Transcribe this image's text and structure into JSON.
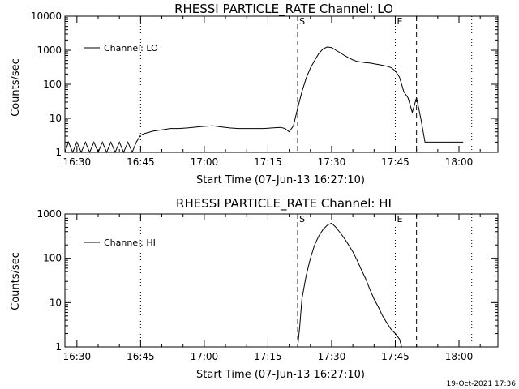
{
  "chart_data": [
    {
      "type": "line",
      "title": "RHESSI PARTICLE_RATE Channel: LO",
      "xlabel": "Start Time (07-Jun-13 16:27:10)",
      "ylabel": "Counts/sec",
      "y_scale": "log",
      "ylim": [
        1,
        10000
      ],
      "xlim": [
        "16:27:10",
        "18:09:10"
      ],
      "x_ticks": [
        "16:30",
        "16:45",
        "17:00",
        "17:15",
        "17:30",
        "17:45",
        "18:00"
      ],
      "y_ticks": [
        "1",
        "10",
        "100",
        "1000",
        "10000"
      ],
      "legend": {
        "position": "top-left",
        "entries": [
          "Channel: LO"
        ]
      },
      "series": [
        {
          "name": "Channel: LO",
          "x": [
            "16:27:10",
            "16:28",
            "16:29",
            "16:30",
            "16:31",
            "16:32",
            "16:33",
            "16:34",
            "16:35",
            "16:36",
            "16:37",
            "16:38",
            "16:39",
            "16:40",
            "16:41",
            "16:42",
            "16:43",
            "16:44",
            "16:45",
            "16:46",
            "16:48",
            "16:50",
            "16:52",
            "16:54",
            "16:56",
            "16:58",
            "17:00",
            "17:02",
            "17:04",
            "17:06",
            "17:08",
            "17:10",
            "17:12",
            "17:14",
            "17:16",
            "17:18",
            "17:19",
            "17:20",
            "17:21",
            "17:22",
            "17:23",
            "17:24",
            "17:25",
            "17:26",
            "17:27",
            "17:28",
            "17:29",
            "17:30",
            "17:31",
            "17:32",
            "17:33",
            "17:34",
            "17:35",
            "17:36",
            "17:37",
            "17:38",
            "17:39",
            "17:40",
            "17:41",
            "17:42",
            "17:43",
            "17:44",
            "17:45",
            "17:46",
            "17:47",
            "17:48",
            "17:49",
            "17:50",
            "17:51",
            "17:52",
            "17:53",
            "17:54",
            "17:55",
            "17:56",
            "17:57",
            "17:58",
            "17:59",
            "18:00",
            "18:01"
          ],
          "values": [
            1,
            2,
            1,
            2,
            1,
            2,
            1,
            2,
            1,
            2,
            1,
            2,
            1,
            2,
            1,
            2,
            1,
            2,
            3.2,
            3.6,
            4.2,
            4.6,
            5.0,
            5.0,
            5.2,
            5.5,
            5.8,
            6.0,
            5.6,
            5.2,
            5.0,
            5.0,
            5.0,
            5.0,
            5.2,
            5.4,
            5.0,
            4.0,
            6.0,
            20,
            60,
            150,
            300,
            500,
            800,
            1100,
            1250,
            1200,
            1000,
            850,
            700,
            600,
            520,
            470,
            450,
            430,
            420,
            400,
            380,
            360,
            340,
            310,
            250,
            160,
            60,
            40,
            15,
            40,
            10,
            2,
            2,
            2,
            2,
            2,
            2,
            2,
            2,
            2,
            2
          ]
        }
      ],
      "annotations": [
        {
          "label": "S",
          "x": "17:22",
          "style": "dashed"
        },
        {
          "label": "E",
          "x": "17:45",
          "style": "dotted"
        },
        {
          "label": "",
          "x": "16:45",
          "style": "dotted"
        },
        {
          "label": "",
          "x": "17:50",
          "style": "dashed"
        },
        {
          "label": "",
          "x": "18:03",
          "style": "dotted"
        }
      ]
    },
    {
      "type": "line",
      "title": "RHESSI PARTICLE_RATE Channel: HI",
      "xlabel": "Start Time (07-Jun-13 16:27:10)",
      "ylabel": "Counts/sec",
      "y_scale": "log",
      "ylim": [
        1,
        1000
      ],
      "xlim": [
        "16:27:10",
        "18:09:10"
      ],
      "x_ticks": [
        "16:30",
        "16:45",
        "17:00",
        "17:15",
        "17:30",
        "17:45",
        "18:00"
      ],
      "y_ticks": [
        "1",
        "10",
        "100",
        "1000"
      ],
      "legend": {
        "position": "top-left",
        "entries": [
          "Channel: HI"
        ]
      },
      "series": [
        {
          "name": "Channel: HI",
          "x": [
            "17:22",
            "17:22:30",
            "17:23",
            "17:24",
            "17:25",
            "17:26",
            "17:27",
            "17:28",
            "17:29",
            "17:30",
            "17:31",
            "17:32",
            "17:33",
            "17:34",
            "17:35",
            "17:36",
            "17:37",
            "17:38",
            "17:39",
            "17:40",
            "17:41",
            "17:42",
            "17:43",
            "17:44",
            "17:45",
            "17:46",
            "17:46:30"
          ],
          "values": [
            1,
            3,
            12,
            40,
            100,
            200,
            320,
            450,
            560,
            620,
            500,
            380,
            280,
            200,
            140,
            90,
            55,
            35,
            20,
            12,
            8,
            5,
            3.5,
            2.5,
            2,
            1.5,
            1
          ]
        }
      ],
      "annotations": [
        {
          "label": "S",
          "x": "17:22",
          "style": "dashed"
        },
        {
          "label": "E",
          "x": "17:45",
          "style": "dotted"
        },
        {
          "label": "",
          "x": "16:45",
          "style": "dotted"
        },
        {
          "label": "",
          "x": "17:50",
          "style": "dashed"
        },
        {
          "label": "",
          "x": "18:03",
          "style": "dotted"
        }
      ]
    }
  ],
  "footer": {
    "timestamp": "19-Oct-2021 17:36"
  }
}
